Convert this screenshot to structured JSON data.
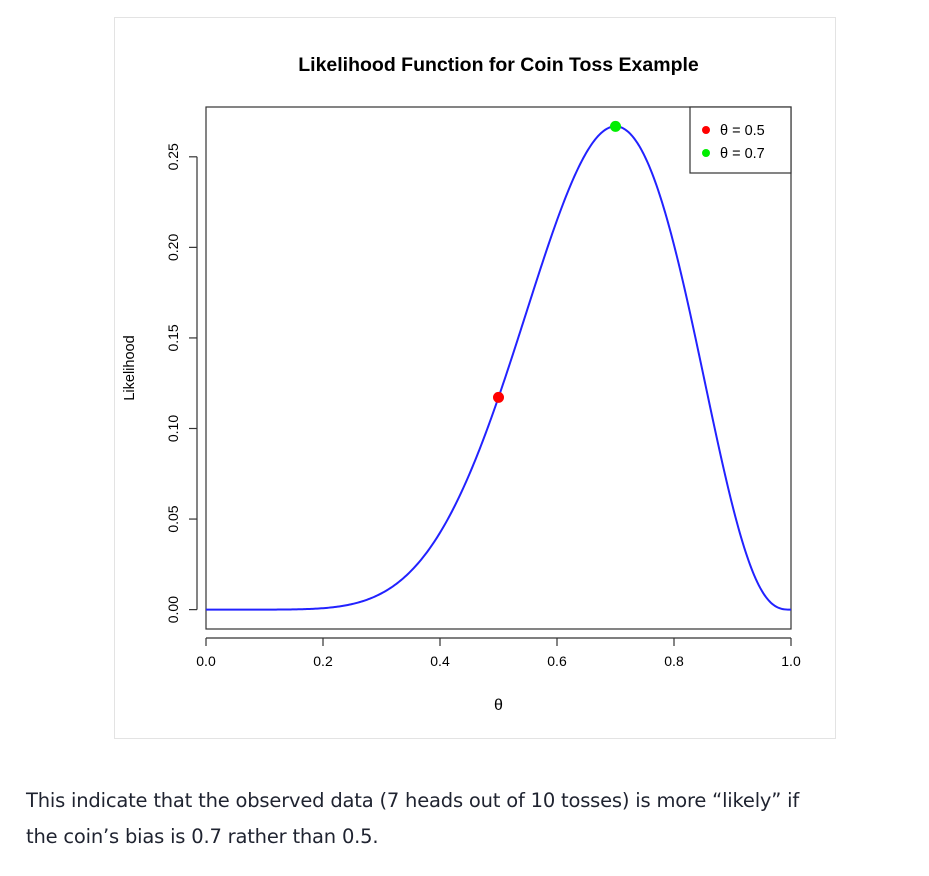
{
  "chart_data": {
    "type": "line",
    "title": "Likelihood Function for Coin Toss Example",
    "xlabel": "θ",
    "ylabel": "Likelihood",
    "xlim": [
      0,
      1
    ],
    "ylim": [
      -0.0107,
      0.2775
    ],
    "x_ticks": [
      0.0,
      0.2,
      0.4,
      0.6,
      0.8,
      1.0
    ],
    "x_tick_labels": [
      "0.0",
      "0.2",
      "0.4",
      "0.6",
      "0.8",
      "1.0"
    ],
    "y_ticks": [
      0.0,
      0.05,
      0.1,
      0.15,
      0.2,
      0.25
    ],
    "y_tick_labels": [
      "0.00",
      "0.05",
      "0.10",
      "0.15",
      "0.20",
      "0.25"
    ],
    "grid": false,
    "legend_position": "top-right",
    "line": {
      "color": "#2222ff",
      "x": [
        0.0,
        0.05,
        0.1,
        0.15,
        0.2,
        0.25,
        0.3,
        0.35,
        0.4,
        0.45,
        0.5,
        0.55,
        0.6,
        0.65,
        0.7,
        0.75,
        0.8,
        0.85,
        0.9,
        0.95,
        1.0
      ],
      "y": [
        0.0,
        0.0,
        0.0001,
        0.0012,
        0.0008,
        0.0031,
        0.009,
        0.0212,
        0.0425,
        0.0746,
        0.1172,
        0.1665,
        0.215,
        0.2522,
        0.2668,
        0.2503,
        0.2013,
        0.1298,
        0.0574,
        0.0105,
        0.0
      ]
    },
    "points": [
      {
        "label": "θ = 0.5",
        "x": 0.5,
        "y": 0.1172,
        "color": "#ff0000"
      },
      {
        "label": "θ = 0.7",
        "x": 0.7,
        "y": 0.2668,
        "color": "#00ee00"
      }
    ]
  },
  "caption": {
    "line1": "This indicate that the observed data (7 heads out of 10 tosses) is more “likely” if",
    "line2": "the coin’s bias is 0.7 rather than 0.5."
  }
}
